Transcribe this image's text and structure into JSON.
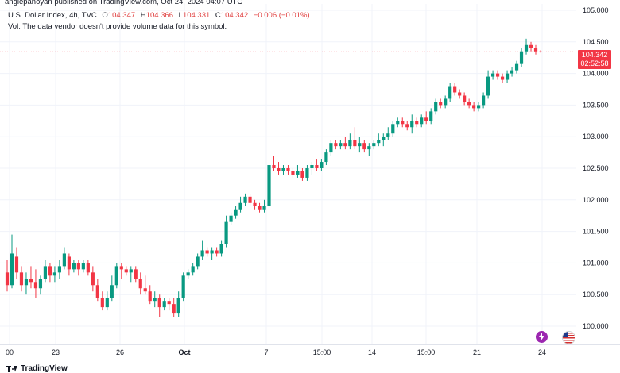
{
  "header": {
    "published_line": "anglepanoyan published on TradingView.com, Oct 24, 2024 04:07 UTC",
    "symbol": "U.S. Dollar Index, 4h, TVC",
    "ohlc": {
      "o_label": "O",
      "o_value": "104.347",
      "h_label": "H",
      "h_value": "104.366",
      "l_label": "L",
      "l_value": "104.331",
      "c_label": "C",
      "c_value": "104.342",
      "change": "−0.006 (−0.01%)"
    },
    "volume_note": "Vol: The data vendor doesn't provide volume data for this symbol."
  },
  "price_tag": {
    "price": "104.342",
    "countdown": "02:52:58"
  },
  "footer": {
    "brand": "TradingView"
  },
  "events": {
    "lightning_icon": "lightning-icon",
    "flag_icon": "us-flag-icon"
  },
  "colors": {
    "up": "#089981",
    "down": "#f23645",
    "grid": "#f0f3fa",
    "text": "#131722",
    "last_price_line": "#f23645"
  },
  "chart_data": {
    "type": "candlestick",
    "symbol": "U.S. Dollar Index",
    "interval": "4h",
    "y_ticks": [
      "100.000",
      "100.500",
      "101.000",
      "101.500",
      "102.000",
      "102.500",
      "103.000",
      "103.500",
      "104.000",
      "104.500",
      "105.000"
    ],
    "y_range": [
      99.85,
      105.05
    ],
    "x_ticks": [
      "00",
      "23",
      "26",
      "Oct",
      "7",
      "15:00",
      "14",
      "15:00",
      "21",
      "24"
    ],
    "last_price": 104.342,
    "ohlc_bars": [
      [
        100.85,
        101.05,
        100.55,
        100.65
      ],
      [
        100.65,
        101.45,
        100.6,
        101.15
      ],
      [
        101.1,
        101.25,
        100.75,
        100.85
      ],
      [
        100.85,
        100.95,
        100.55,
        100.65
      ],
      [
        100.65,
        100.85,
        100.5,
        100.75
      ],
      [
        100.75,
        100.95,
        100.6,
        100.7
      ],
      [
        100.7,
        100.9,
        100.45,
        100.6
      ],
      [
        100.6,
        100.8,
        100.5,
        100.75
      ],
      [
        100.75,
        101.05,
        100.7,
        100.95
      ],
      [
        100.95,
        101.0,
        100.7,
        100.8
      ],
      [
        100.8,
        100.95,
        100.7,
        100.85
      ],
      [
        100.85,
        101.05,
        100.75,
        100.95
      ],
      [
        100.95,
        101.25,
        100.9,
        101.15
      ],
      [
        101.1,
        101.15,
        100.8,
        100.9
      ],
      [
        100.9,
        101.05,
        100.85,
        101.0
      ],
      [
        101.0,
        101.05,
        100.8,
        100.9
      ],
      [
        100.9,
        101.05,
        100.85,
        101.0
      ],
      [
        101.0,
        101.05,
        100.8,
        100.85
      ],
      [
        100.85,
        100.95,
        100.55,
        100.65
      ],
      [
        100.65,
        100.75,
        100.4,
        100.45
      ],
      [
        100.45,
        100.55,
        100.25,
        100.3
      ],
      [
        100.3,
        100.55,
        100.25,
        100.45
      ],
      [
        100.45,
        100.8,
        100.4,
        100.65
      ],
      [
        100.65,
        101.0,
        100.6,
        100.95
      ],
      [
        100.95,
        101.0,
        100.75,
        100.9
      ],
      [
        100.9,
        100.95,
        100.8,
        100.85
      ],
      [
        100.85,
        100.95,
        100.7,
        100.9
      ],
      [
        100.9,
        100.95,
        100.7,
        100.75
      ],
      [
        100.75,
        100.85,
        100.5,
        100.6
      ],
      [
        100.6,
        100.8,
        100.5,
        100.55
      ],
      [
        100.55,
        100.65,
        100.35,
        100.4
      ],
      [
        100.4,
        100.55,
        100.3,
        100.45
      ],
      [
        100.45,
        100.5,
        100.15,
        100.3
      ],
      [
        100.3,
        100.45,
        100.25,
        100.4
      ],
      [
        100.4,
        100.45,
        100.25,
        100.35
      ],
      [
        100.35,
        100.45,
        100.15,
        100.2
      ],
      [
        100.2,
        100.55,
        100.15,
        100.45
      ],
      [
        100.45,
        100.85,
        100.4,
        100.8
      ],
      [
        100.8,
        100.9,
        100.75,
        100.85
      ],
      [
        100.85,
        101.0,
        100.8,
        100.95
      ],
      [
        100.95,
        101.15,
        100.9,
        101.1
      ],
      [
        101.1,
        101.35,
        101.05,
        101.2
      ],
      [
        101.2,
        101.25,
        101.1,
        101.15
      ],
      [
        101.15,
        101.25,
        101.05,
        101.2
      ],
      [
        101.2,
        101.25,
        101.1,
        101.15
      ],
      [
        101.15,
        101.35,
        101.1,
        101.3
      ],
      [
        101.3,
        101.75,
        101.25,
        101.65
      ],
      [
        101.65,
        101.8,
        101.6,
        101.75
      ],
      [
        101.75,
        101.9,
        101.7,
        101.85
      ],
      [
        101.85,
        102.05,
        101.8,
        101.95
      ],
      [
        101.95,
        102.1,
        101.9,
        102.05
      ],
      [
        102.05,
        102.1,
        101.9,
        101.95
      ],
      [
        101.95,
        102.0,
        101.85,
        101.9
      ],
      [
        101.9,
        101.95,
        101.8,
        101.85
      ],
      [
        101.85,
        102.0,
        101.8,
        101.9
      ],
      [
        101.9,
        102.65,
        101.85,
        102.55
      ],
      [
        102.55,
        102.7,
        102.45,
        102.5
      ],
      [
        102.5,
        102.6,
        102.4,
        102.45
      ],
      [
        102.45,
        102.55,
        102.4,
        102.5
      ],
      [
        102.5,
        102.55,
        102.4,
        102.45
      ],
      [
        102.45,
        102.5,
        102.35,
        102.4
      ],
      [
        102.4,
        102.55,
        102.35,
        102.45
      ],
      [
        102.45,
        102.5,
        102.3,
        102.35
      ],
      [
        102.35,
        102.55,
        102.3,
        102.5
      ],
      [
        102.5,
        102.6,
        102.4,
        102.55
      ],
      [
        102.55,
        102.65,
        102.45,
        102.5
      ],
      [
        102.5,
        102.65,
        102.45,
        102.6
      ],
      [
        102.6,
        102.8,
        102.55,
        102.75
      ],
      [
        102.75,
        102.95,
        102.7,
        102.9
      ],
      [
        102.9,
        102.95,
        102.8,
        102.85
      ],
      [
        102.85,
        102.95,
        102.8,
        102.9
      ],
      [
        102.9,
        103.0,
        102.8,
        102.85
      ],
      [
        102.85,
        103.05,
        102.8,
        102.95
      ],
      [
        102.95,
        103.15,
        102.8,
        102.85
      ],
      [
        102.85,
        103.0,
        102.75,
        102.9
      ],
      [
        102.9,
        102.95,
        102.75,
        102.8
      ],
      [
        102.8,
        102.9,
        102.7,
        102.85
      ],
      [
        102.85,
        102.95,
        102.8,
        102.9
      ],
      [
        102.9,
        103.05,
        102.85,
        102.95
      ],
      [
        102.95,
        103.05,
        102.85,
        103.0
      ],
      [
        103.0,
        103.15,
        102.95,
        103.05
      ],
      [
        103.05,
        103.25,
        103.0,
        103.2
      ],
      [
        103.2,
        103.3,
        103.15,
        103.25
      ],
      [
        103.25,
        103.3,
        103.15,
        103.2
      ],
      [
        103.2,
        103.25,
        103.1,
        103.15
      ],
      [
        103.15,
        103.35,
        103.05,
        103.25
      ],
      [
        103.25,
        103.3,
        103.15,
        103.2
      ],
      [
        103.2,
        103.35,
        103.15,
        103.3
      ],
      [
        103.3,
        103.4,
        103.2,
        103.25
      ],
      [
        103.25,
        103.45,
        103.2,
        103.4
      ],
      [
        103.4,
        103.6,
        103.35,
        103.55
      ],
      [
        103.55,
        103.6,
        103.45,
        103.5
      ],
      [
        103.5,
        103.65,
        103.45,
        103.6
      ],
      [
        103.6,
        103.85,
        103.55,
        103.8
      ],
      [
        103.8,
        103.85,
        103.65,
        103.7
      ],
      [
        103.7,
        103.75,
        103.6,
        103.65
      ],
      [
        103.65,
        103.7,
        103.5,
        103.55
      ],
      [
        103.55,
        103.6,
        103.45,
        103.5
      ],
      [
        103.5,
        103.55,
        103.4,
        103.45
      ],
      [
        103.45,
        103.55,
        103.4,
        103.5
      ],
      [
        103.5,
        103.7,
        103.45,
        103.65
      ],
      [
        103.65,
        104.05,
        103.6,
        103.95
      ],
      [
        103.95,
        104.05,
        103.9,
        104.0
      ],
      [
        104.0,
        104.05,
        103.9,
        103.95
      ],
      [
        103.95,
        104.0,
        103.85,
        103.9
      ],
      [
        103.9,
        104.05,
        103.85,
        104.0
      ],
      [
        104.0,
        104.1,
        103.95,
        104.05
      ],
      [
        104.05,
        104.2,
        104.0,
        104.15
      ],
      [
        104.15,
        104.4,
        104.1,
        104.35
      ],
      [
        104.35,
        104.55,
        104.3,
        104.45
      ],
      [
        104.45,
        104.5,
        104.35,
        104.4
      ],
      [
        104.4,
        104.45,
        104.3,
        104.35
      ],
      [
        104.347,
        104.366,
        104.331,
        104.342
      ]
    ]
  }
}
